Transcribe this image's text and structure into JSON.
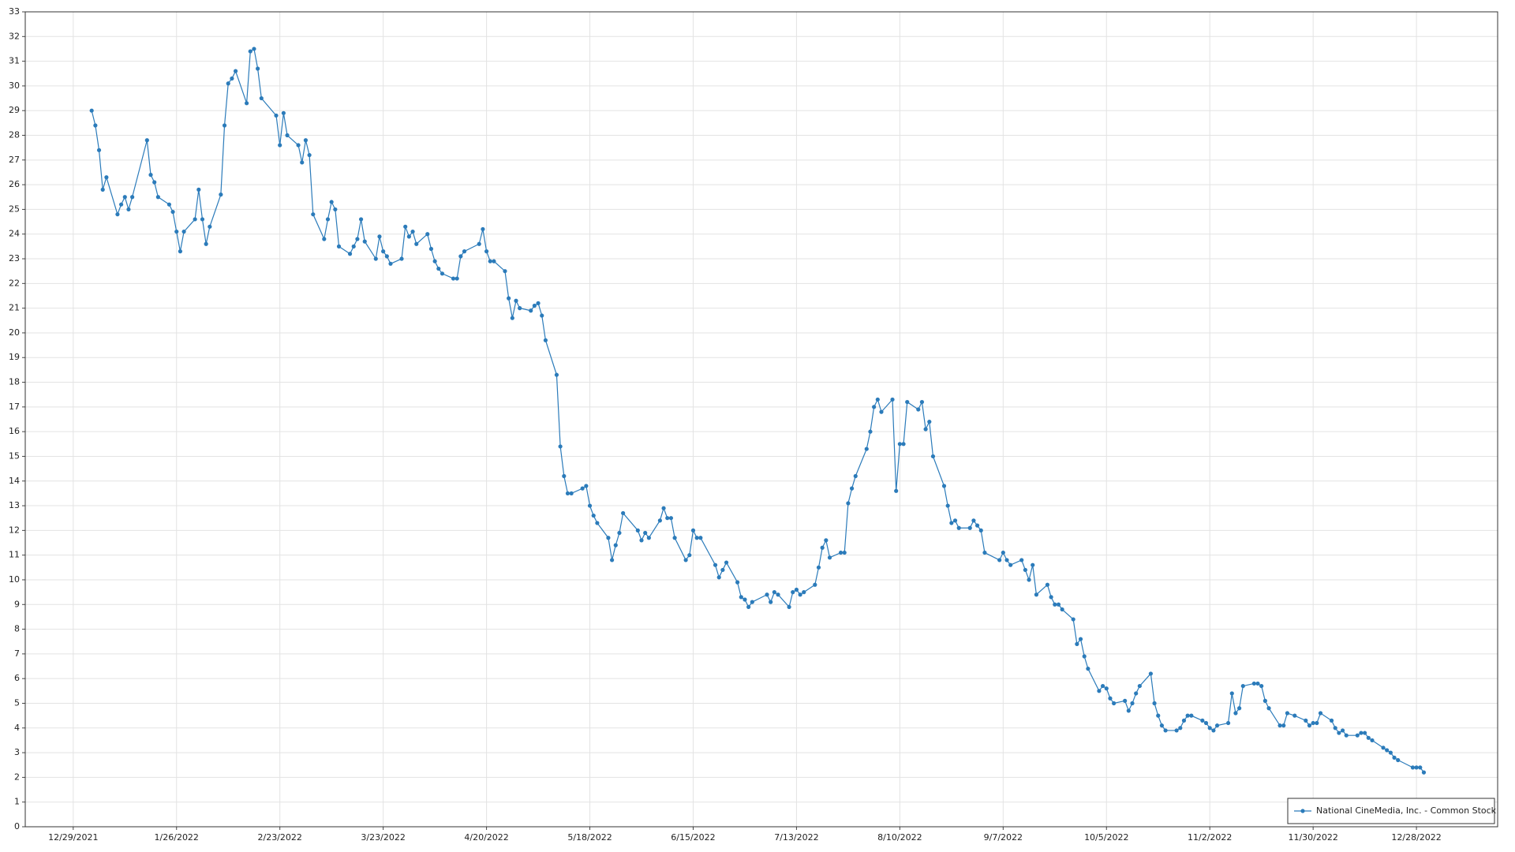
{
  "chart_data": {
    "type": "line",
    "x": [
      "1/3/2022",
      "1/4/2022",
      "1/5/2022",
      "1/6/2022",
      "1/7/2022",
      "1/10/2022",
      "1/11/2022",
      "1/12/2022",
      "1/13/2022",
      "1/14/2022",
      "1/18/2022",
      "1/19/2022",
      "1/20/2022",
      "1/21/2022",
      "1/24/2022",
      "1/25/2022",
      "1/26/2022",
      "1/27/2022",
      "1/28/2022",
      "1/31/2022",
      "2/1/2022",
      "2/2/2022",
      "2/3/2022",
      "2/4/2022",
      "2/7/2022",
      "2/8/2022",
      "2/9/2022",
      "2/10/2022",
      "2/11/2022",
      "2/14/2022",
      "2/15/2022",
      "2/16/2022",
      "2/17/2022",
      "2/18/2022",
      "2/22/2022",
      "2/23/2022",
      "2/24/2022",
      "2/25/2022",
      "2/28/2022",
      "3/1/2022",
      "3/2/2022",
      "3/3/2022",
      "3/4/2022",
      "3/7/2022",
      "3/8/2022",
      "3/9/2022",
      "3/10/2022",
      "3/11/2022",
      "3/14/2022",
      "3/15/2022",
      "3/16/2022",
      "3/17/2022",
      "3/18/2022",
      "3/21/2022",
      "3/22/2022",
      "3/23/2022",
      "3/24/2022",
      "3/25/2022",
      "3/28/2022",
      "3/29/2022",
      "3/30/2022",
      "3/31/2022",
      "4/1/2022",
      "4/4/2022",
      "4/5/2022",
      "4/6/2022",
      "4/7/2022",
      "4/8/2022",
      "4/11/2022",
      "4/12/2022",
      "4/13/2022",
      "4/14/2022",
      "4/18/2022",
      "4/19/2022",
      "4/20/2022",
      "4/21/2022",
      "4/22/2022",
      "4/25/2022",
      "4/26/2022",
      "4/27/2022",
      "4/28/2022",
      "4/29/2022",
      "5/2/2022",
      "5/3/2022",
      "5/4/2022",
      "5/5/2022",
      "5/6/2022",
      "5/9/2022",
      "5/10/2022",
      "5/11/2022",
      "5/12/2022",
      "5/13/2022",
      "5/16/2022",
      "5/17/2022",
      "5/18/2022",
      "5/19/2022",
      "5/20/2022",
      "5/23/2022",
      "5/24/2022",
      "5/25/2022",
      "5/26/2022",
      "5/27/2022",
      "5/31/2022",
      "6/1/2022",
      "6/2/2022",
      "6/3/2022",
      "6/6/2022",
      "6/7/2022",
      "6/8/2022",
      "6/9/2022",
      "6/10/2022",
      "6/13/2022",
      "6/14/2022",
      "6/15/2022",
      "6/16/2022",
      "6/17/2022",
      "6/21/2022",
      "6/22/2022",
      "6/23/2022",
      "6/24/2022",
      "6/27/2022",
      "6/28/2022",
      "6/29/2022",
      "6/30/2022",
      "7/1/2022",
      "7/5/2022",
      "7/6/2022",
      "7/7/2022",
      "7/8/2022",
      "7/11/2022",
      "7/12/2022",
      "7/13/2022",
      "7/14/2022",
      "7/15/2022",
      "7/18/2022",
      "7/19/2022",
      "7/20/2022",
      "7/21/2022",
      "7/22/2022",
      "7/25/2022",
      "7/26/2022",
      "7/27/2022",
      "7/28/2022",
      "7/29/2022",
      "8/1/2022",
      "8/2/2022",
      "8/3/2022",
      "8/4/2022",
      "8/5/2022",
      "8/8/2022",
      "8/9/2022",
      "8/10/2022",
      "8/11/2022",
      "8/12/2022",
      "8/15/2022",
      "8/16/2022",
      "8/17/2022",
      "8/18/2022",
      "8/19/2022",
      "8/22/2022",
      "8/23/2022",
      "8/24/2022",
      "8/25/2022",
      "8/26/2022",
      "8/29/2022",
      "8/30/2022",
      "8/31/2022",
      "9/1/2022",
      "9/2/2022",
      "9/6/2022",
      "9/7/2022",
      "9/8/2022",
      "9/9/2022",
      "9/12/2022",
      "9/13/2022",
      "9/14/2022",
      "9/15/2022",
      "9/16/2022",
      "9/19/2022",
      "9/20/2022",
      "9/21/2022",
      "9/22/2022",
      "9/23/2022",
      "9/26/2022",
      "9/27/2022",
      "9/28/2022",
      "9/29/2022",
      "9/30/2022",
      "10/3/2022",
      "10/4/2022",
      "10/5/2022",
      "10/6/2022",
      "10/7/2022",
      "10/10/2022",
      "10/11/2022",
      "10/12/2022",
      "10/13/2022",
      "10/14/2022",
      "10/17/2022",
      "10/18/2022",
      "10/19/2022",
      "10/20/2022",
      "10/21/2022",
      "10/24/2022",
      "10/25/2022",
      "10/26/2022",
      "10/27/2022",
      "10/28/2022",
      "10/31/2022",
      "11/1/2022",
      "11/2/2022",
      "11/3/2022",
      "11/4/2022",
      "11/7/2022",
      "11/8/2022",
      "11/9/2022",
      "11/10/2022",
      "11/11/2022",
      "11/14/2022",
      "11/15/2022",
      "11/16/2022",
      "11/17/2022",
      "11/18/2022",
      "11/21/2022",
      "11/22/2022",
      "11/23/2022",
      "11/25/2022",
      "11/28/2022",
      "11/29/2022",
      "11/30/2022",
      "12/1/2022",
      "12/2/2022",
      "12/5/2022",
      "12/6/2022",
      "12/7/2022",
      "12/8/2022",
      "12/9/2022",
      "12/12/2022",
      "12/13/2022",
      "12/14/2022",
      "12/15/2022",
      "12/16/2022",
      "12/19/2022",
      "12/20/2022",
      "12/21/2022",
      "12/22/2022",
      "12/23/2022",
      "12/27/2022",
      "12/28/2022",
      "12/29/2022",
      "12/30/2022"
    ],
    "series": [
      {
        "name": "National CineMedia, Inc. - Common Stock",
        "color": "#2b7bba",
        "values": [
          29.0,
          28.4,
          27.4,
          25.8,
          26.3,
          24.8,
          25.2,
          25.5,
          25.0,
          25.5,
          27.8,
          26.4,
          26.1,
          25.5,
          25.2,
          24.9,
          24.1,
          23.3,
          24.1,
          24.6,
          25.8,
          24.6,
          23.6,
          24.3,
          25.6,
          28.4,
          30.1,
          30.3,
          30.6,
          29.3,
          31.4,
          31.5,
          30.7,
          29.5,
          28.8,
          27.6,
          28.9,
          28.0,
          27.6,
          26.9,
          27.8,
          27.2,
          24.8,
          23.8,
          24.6,
          25.3,
          25.0,
          23.5,
          23.2,
          23.5,
          23.8,
          24.6,
          23.7,
          23.0,
          23.9,
          23.3,
          23.1,
          22.8,
          23.0,
          24.3,
          23.9,
          24.1,
          23.6,
          24.0,
          23.4,
          22.9,
          22.6,
          22.4,
          22.2,
          22.2,
          23.1,
          23.3,
          23.6,
          24.2,
          23.3,
          22.9,
          22.9,
          22.5,
          21.4,
          20.6,
          21.3,
          21.0,
          20.9,
          21.1,
          21.2,
          20.7,
          19.7,
          18.3,
          15.4,
          14.2,
          13.5,
          13.5,
          13.7,
          13.8,
          13.0,
          12.6,
          12.3,
          11.7,
          10.8,
          11.4,
          11.9,
          12.7,
          12.0,
          11.6,
          11.9,
          11.7,
          12.4,
          12.9,
          12.5,
          12.5,
          11.7,
          10.8,
          11.0,
          12.0,
          11.7,
          11.7,
          10.6,
          10.1,
          10.4,
          10.7,
          9.9,
          9.3,
          9.2,
          8.9,
          9.1,
          9.4,
          9.1,
          9.5,
          9.4,
          8.9,
          9.5,
          9.6,
          9.4,
          9.5,
          9.8,
          10.5,
          11.3,
          11.6,
          10.9,
          11.1,
          11.1,
          13.1,
          13.7,
          14.2,
          15.3,
          16.0,
          17.0,
          17.3,
          16.8,
          17.3,
          13.6,
          15.5,
          15.5,
          17.2,
          16.9,
          17.2,
          16.1,
          16.4,
          15.0,
          13.8,
          13.0,
          12.3,
          12.4,
          12.1,
          12.1,
          12.4,
          12.2,
          12.0,
          11.1,
          10.8,
          11.1,
          10.8,
          10.6,
          10.8,
          10.4,
          10.0,
          10.6,
          9.4,
          9.8,
          9.3,
          9.0,
          9.0,
          8.8,
          8.4,
          7.4,
          7.6,
          6.9,
          6.4,
          5.5,
          5.7,
          5.6,
          5.2,
          5.0,
          5.1,
          4.7,
          5.0,
          5.4,
          5.7,
          6.2,
          5.0,
          4.5,
          4.1,
          3.9,
          3.9,
          4.0,
          4.3,
          4.5,
          4.5,
          4.3,
          4.2,
          4.0,
          3.9,
          4.1,
          4.2,
          5.4,
          4.6,
          4.8,
          5.7,
          5.8,
          5.8,
          5.7,
          5.1,
          4.8,
          4.1,
          4.1,
          4.6,
          4.5,
          4.3,
          4.1,
          4.2,
          4.2,
          4.6,
          4.3,
          4.0,
          3.8,
          3.9,
          3.7,
          3.7,
          3.8,
          3.8,
          3.6,
          3.5,
          3.2,
          3.1,
          3.0,
          2.8,
          2.7,
          2.4,
          2.4,
          2.4,
          2.2
        ]
      }
    ],
    "xlim": [
      "12/16/2021",
      "1/19/2023"
    ],
    "xticks": [
      "12/29/2021",
      "1/26/2022",
      "2/23/2022",
      "3/23/2022",
      "4/20/2022",
      "5/18/2022",
      "6/15/2022",
      "7/13/2022",
      "8/10/2022",
      "9/7/2022",
      "10/5/2022",
      "11/2/2022",
      "11/30/2022",
      "12/28/2022"
    ],
    "ylim": [
      0,
      33
    ],
    "yticks": [
      0,
      1,
      2,
      3,
      4,
      5,
      6,
      7,
      8,
      9,
      10,
      11,
      12,
      13,
      14,
      15,
      16,
      17,
      18,
      19,
      20,
      21,
      22,
      23,
      24,
      25,
      26,
      27,
      28,
      29,
      30,
      31,
      32,
      33
    ],
    "grid": true,
    "legend": "lower-right"
  }
}
